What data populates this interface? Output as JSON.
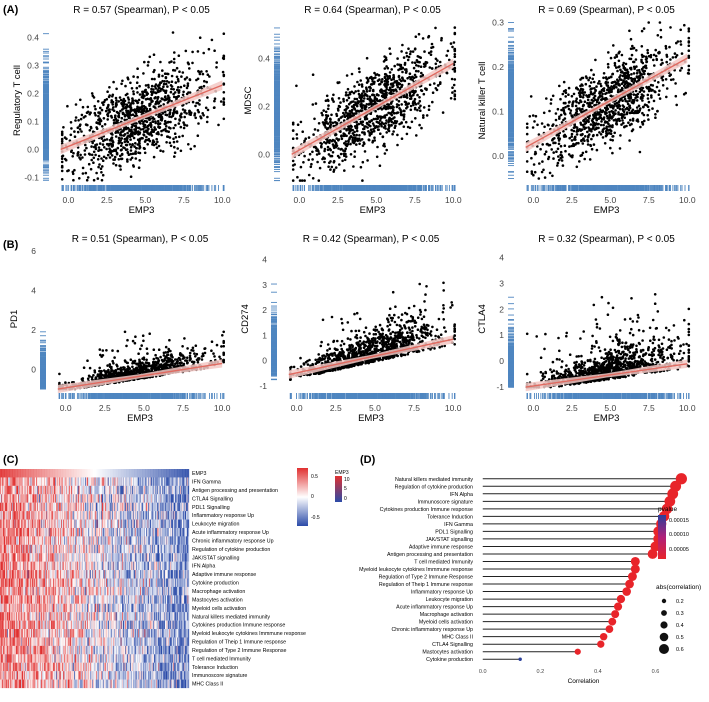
{
  "panel_labels": {
    "A": "(A)",
    "B": "(B)",
    "C": "(C)",
    "D": "(D)"
  },
  "colors": {
    "point": "#000000",
    "fit": "#e06a60",
    "band": "#f3c8c4",
    "rug": "#4f86c0",
    "heat_high": "#e03030",
    "heat_low": "#2b4ba8",
    "lollipop_high": "#e8242a",
    "lollipop_low": "#2a3f9a"
  },
  "chart_data": [
    {
      "id": "a1",
      "type": "scatter",
      "title": "R = 0.57 (Spearman), P < 0.05",
      "xlabel": "EMP3",
      "ylabel": "Regulatory T cell",
      "xlim": [
        -1,
        10.5
      ],
      "ylim": [
        -0.12,
        0.47
      ],
      "xticks": [
        0,
        2.5,
        5,
        7.5,
        10
      ],
      "xtick_labels": [
        "0.0",
        "2.5",
        "5.0",
        "7.5",
        "10.0"
      ],
      "yticks": [
        -0.1,
        0,
        0.1,
        0.2,
        0.3,
        0.4
      ],
      "ytick_labels": [
        "-0.1",
        "0.0",
        "0.1",
        "0.2",
        "0.3",
        "0.4"
      ],
      "fit": [
        [
          -0.5,
          0.0
        ],
        [
          10,
          0.23
        ]
      ],
      "n_points": 1100,
      "x_mean": 4.5,
      "x_sd": 2.4,
      "noise": 0.075,
      "y_floor": -0.11,
      "y_cap": 0.46,
      "skew": 0
    },
    {
      "id": "a2",
      "type": "scatter",
      "title": "R = 0.64 (Spearman), P < 0.05",
      "xlabel": "EMP3",
      "ylabel": "MDSC",
      "xlim": [
        -1,
        10.5
      ],
      "ylim": [
        -0.12,
        0.57
      ],
      "xticks": [
        0,
        2.5,
        5,
        7.5,
        10
      ],
      "xtick_labels": [
        "0.0",
        "2.5",
        "5.0",
        "7.5",
        "10.0"
      ],
      "yticks": [
        0,
        0.2,
        0.4
      ],
      "ytick_labels": [
        "0.0",
        "0.2",
        "0.4"
      ],
      "fit": [
        [
          -0.5,
          0.0
        ],
        [
          10,
          0.38
        ]
      ],
      "n_points": 1100,
      "x_mean": 4.8,
      "x_sd": 2.4,
      "noise": 0.085,
      "y_floor": -0.11,
      "y_cap": 0.55,
      "skew": 0
    },
    {
      "id": "a3",
      "type": "scatter",
      "title": "R = 0.69 (Spearman), P < 0.05",
      "xlabel": "EMP3",
      "ylabel": "Natural killer T cell",
      "xlim": [
        -1,
        10.5
      ],
      "ylim": [
        -0.06,
        0.31
      ],
      "xticks": [
        0,
        2.5,
        5,
        7.5,
        10
      ],
      "xtick_labels": [
        "0.0",
        "2.5",
        "5.0",
        "7.5",
        "10.0"
      ],
      "yticks": [
        0,
        0.1,
        0.2,
        0.3
      ],
      "ytick_labels": [
        "0.0",
        "0.1",
        "0.2",
        "0.3"
      ],
      "fit": [
        [
          -0.5,
          0.02
        ],
        [
          10,
          0.22
        ]
      ],
      "n_points": 1100,
      "x_mean": 4.8,
      "x_sd": 2.3,
      "noise": 0.045,
      "y_floor": -0.05,
      "y_cap": 0.3,
      "skew": 0
    },
    {
      "id": "b1",
      "type": "scatter",
      "title": "R = 0.51 (Spearman), P < 0.05",
      "xlabel": "EMP3",
      "ylabel": "PD1",
      "xlim": [
        -1,
        10.5
      ],
      "ylim": [
        -1.1,
        6.2
      ],
      "xticks": [
        0,
        2.5,
        5,
        7.5,
        10
      ],
      "xtick_labels": [
        "0.0",
        "2.5",
        "5.0",
        "7.5",
        "10.0"
      ],
      "yticks": [
        0,
        2,
        4,
        6
      ],
      "ytick_labels": [
        "0",
        "2",
        "4",
        "6"
      ],
      "fit": [
        [
          -0.5,
          -1.0
        ],
        [
          10,
          0.3
        ]
      ],
      "n_points": 1100,
      "x_mean": 4.5,
      "x_sd": 2.4,
      "noise": 0.45,
      "y_floor": -1.0,
      "y_cap": 6.0,
      "skew": 1
    },
    {
      "id": "b2",
      "type": "scatter",
      "title": "R = 0.42 (Spearman), P < 0.05",
      "xlabel": "EMP3",
      "ylabel": "CD274",
      "xlim": [
        -1,
        10.5
      ],
      "ylim": [
        -1.2,
        4.5
      ],
      "xticks": [
        0,
        2.5,
        5,
        7.5,
        10
      ],
      "xtick_labels": [
        "0.0",
        "2.5",
        "5.0",
        "7.5",
        "10.0"
      ],
      "yticks": [
        -1,
        0,
        1,
        2,
        3,
        4
      ],
      "ytick_labels": [
        "-1",
        "0",
        "1",
        "2",
        "3",
        "4"
      ],
      "fit": [
        [
          -0.5,
          -0.55
        ],
        [
          10,
          0.85
        ]
      ],
      "n_points": 1100,
      "x_mean": 4.8,
      "x_sd": 2.3,
      "noise": 0.75,
      "y_floor": -1.1,
      "y_cap": 4.4,
      "skew": 0.6
    },
    {
      "id": "b3",
      "type": "scatter",
      "title": "R = 0.32 (Spearman), P < 0.05",
      "xlabel": "EMP3",
      "ylabel": "CTLA4",
      "xlim": [
        -1,
        10.5
      ],
      "ylim": [
        -1.15,
        4.4
      ],
      "xticks": [
        0,
        2.5,
        5,
        7.5,
        10
      ],
      "xtick_labels": [
        "0.0",
        "2.5",
        "5.0",
        "7.5",
        "10.0"
      ],
      "yticks": [
        -1,
        0,
        1,
        2,
        3,
        4
      ],
      "ytick_labels": [
        "-1",
        "0",
        "1",
        "2",
        "3",
        "4"
      ],
      "fit": [
        [
          -0.5,
          -1.0
        ],
        [
          10,
          -0.1
        ]
      ],
      "n_points": 1100,
      "x_mean": 4.8,
      "x_sd": 2.3,
      "noise": 0.55,
      "y_floor": -1.0,
      "y_cap": 4.2,
      "skew": 1
    }
  ],
  "heatmap": {
    "type": "heatmap",
    "rows": [
      "EMP3",
      "IFN Gamma",
      "Antigen processing and presentation",
      "CTLA4 Signalling",
      "PDL1 Signalling",
      "Inflammatory response Up",
      "Leukocyte migration",
      "Acute inflammatory response Up",
      "Chronic inflammatory response Up",
      "Regulation of cytokine production",
      "JAK/STAT signalling",
      "IFN Alpha",
      "Adaptive immune response",
      "Cytokine production",
      "Macrophage activation",
      "Mastocytes activation",
      "Myeloid cells activation",
      "Natural killers mediated immunity",
      "Cytokines production Immune response",
      "Myeloid leukocyte cytokines Immmune response",
      "Regulation of Theip 1 Immune response",
      "Regulation of Type 2 Immune Response",
      "T cell mediated Immunity",
      "Tolerance Induction",
      "Immunoscore signature",
      "MHC Class II"
    ],
    "n_columns": 260,
    "legend_title": "EMP3",
    "legend_ticks": [
      "10",
      "5",
      "0"
    ],
    "colorbar_ticks": [
      "0.5",
      "0",
      "-0.5"
    ]
  },
  "lollipop": {
    "type": "lollipop",
    "xlabel": "Correlation",
    "xticks": [
      0.0,
      0.2,
      0.4,
      0.6
    ],
    "xtick_labels": [
      "0.0",
      "0.2",
      "0.4",
      "0.6"
    ],
    "xlim": [
      -0.02,
      0.72
    ],
    "categories": [
      "Natural killers mediated immunity",
      "Regulation of cytokine production",
      "IFN Alpha",
      "Immunoscore signature",
      "Cytokines production Immune response",
      "Tolerance Induction",
      "IFN Gamma",
      "PDL1 Signalling",
      "JAK/STAT signalling",
      "Adaptive immune response",
      "Antigen processing and presentation",
      "T cell mediated Immunity",
      "Myeloid leukocyte cytokines Immmune response",
      "Regulation of Type 2 Immune Response",
      "Regulation of Theip 1 Immune response",
      "Inflammatory response Up",
      "Leukocyte migration",
      "Acute inflammatory response Up",
      "Macrophage activation",
      "Myeloid cells activation",
      "Chronic inflammatory response Up",
      "MHC Class II",
      "CTLA4 Signalling",
      "Mastocytes activation",
      "Cytokine production"
    ],
    "values": [
      0.69,
      0.67,
      0.66,
      0.65,
      0.64,
      0.63,
      0.62,
      0.61,
      0.61,
      0.6,
      0.59,
      0.53,
      0.53,
      0.52,
      0.51,
      0.5,
      0.48,
      0.47,
      0.46,
      0.45,
      0.44,
      0.42,
      0.41,
      0.33,
      0.13
    ],
    "pvalue_legend": {
      "title": "pvalue",
      "ticks": [
        "0.00015",
        "0.00010",
        "0.00005"
      ]
    },
    "size_legend": {
      "title": "abs(correlation)",
      "ticks": [
        "0.2",
        "0.3",
        "0.4",
        "0.5",
        "0.6"
      ]
    }
  }
}
